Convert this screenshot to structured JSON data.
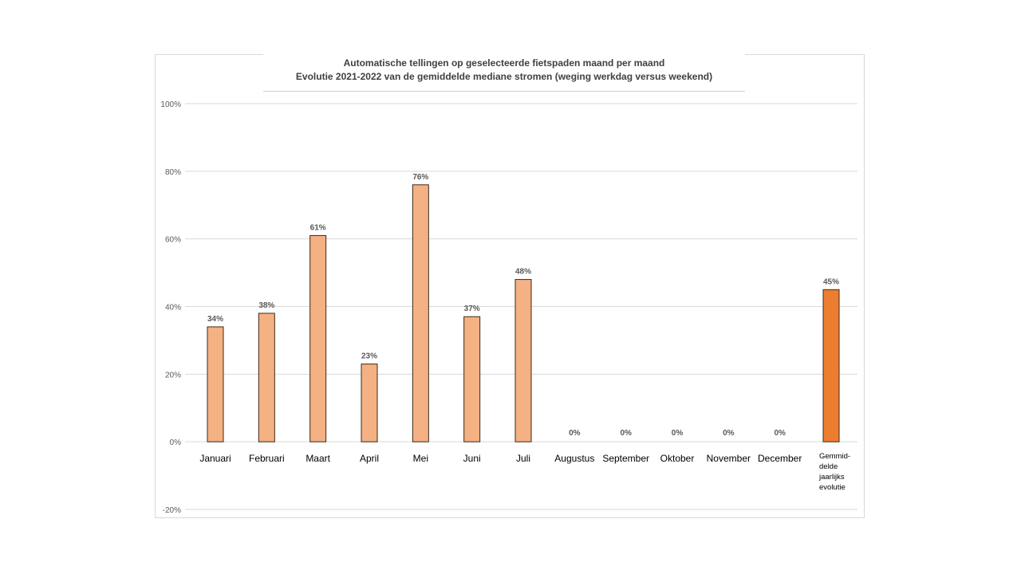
{
  "chart_data": {
    "type": "bar",
    "title": "Automatische tellingen op geselecteerde fietspaden maand per maand",
    "subtitle": "Evolutie 2021-2022 van de gemiddelde mediane stromen (weging werkdag versus weekend)",
    "categories": [
      "Januari",
      "Februari",
      "Maart",
      "April",
      "Mei",
      "Juni",
      "Juli",
      "Augustus",
      "September",
      "Oktober",
      "November",
      "December",
      "Gemmid- delde jaarlijks evolutie"
    ],
    "values": [
      34,
      38,
      61,
      23,
      76,
      37,
      48,
      0,
      0,
      0,
      0,
      0,
      45
    ],
    "data_labels": [
      "34%",
      "38%",
      "61%",
      "23%",
      "76%",
      "37%",
      "48%",
      "0%",
      "0%",
      "0%",
      "0%",
      "0%",
      "45%"
    ],
    "ylim": [
      -20,
      100
    ],
    "yticks": [
      -20,
      0,
      20,
      40,
      60,
      80,
      100
    ],
    "ytick_labels": [
      "-20%",
      "0%",
      "20%",
      "40%",
      "60%",
      "80%",
      "100%"
    ],
    "unit": "%",
    "grid": true,
    "colors": {
      "bar": "#f4b183",
      "bar_highlight": "#ed7d31",
      "bar_border": "#3a2a1a",
      "grid": "#d9d9d9"
    }
  }
}
